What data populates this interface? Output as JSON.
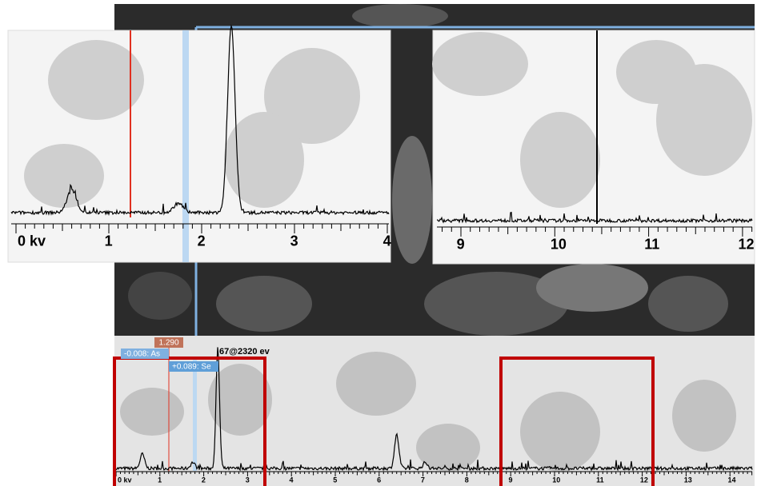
{
  "main_spectrum": {
    "axis_labels": [
      "0 kv",
      "1",
      "2",
      "3",
      "4",
      "5",
      "6",
      "7",
      "8",
      "9",
      "10",
      "11",
      "12",
      "13",
      "14"
    ],
    "markers": {
      "cursor": "1.290",
      "element_1": "-0.008: As",
      "element_2": "+0.089: Se",
      "peak": "67@2320 ev"
    }
  },
  "zoom_left": {
    "axis_labels": [
      "0 kv",
      "1",
      "2",
      "3",
      "4"
    ]
  },
  "zoom_right": {
    "axis_labels": [
      "9",
      "10",
      "11",
      "12"
    ]
  }
}
